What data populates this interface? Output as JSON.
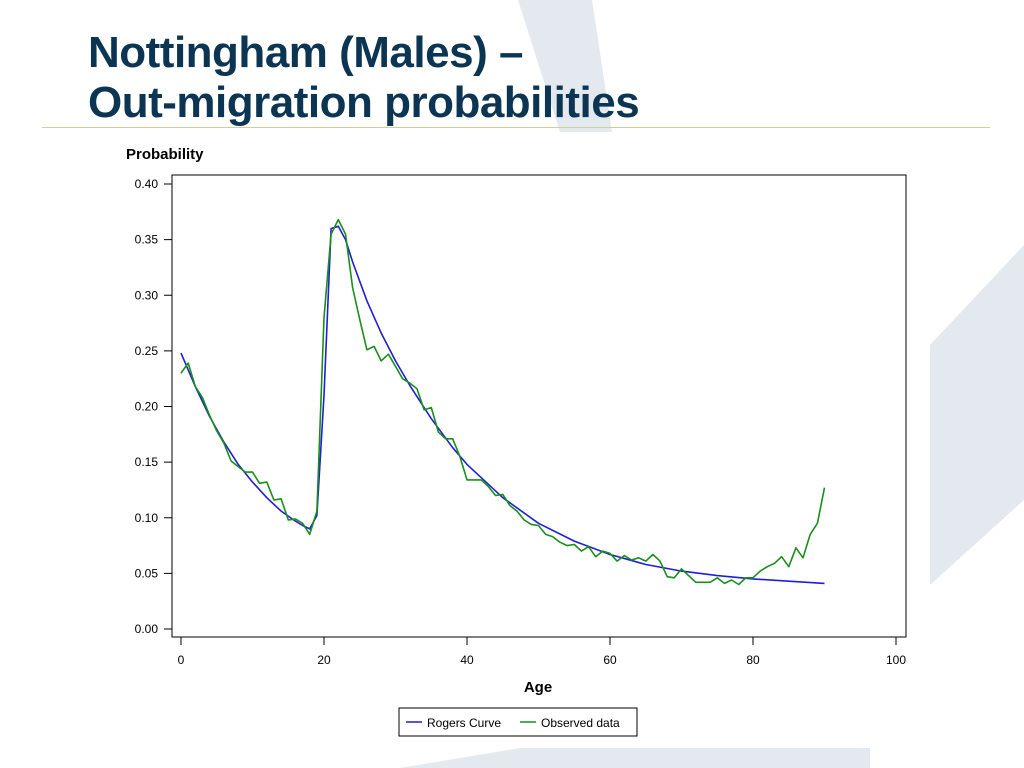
{
  "slide": {
    "title_line1": "Nottingham (Males) –",
    "title_line2": "Out-migration probabilities",
    "colors": {
      "title": "#0b3553",
      "rule": "#c8d29a",
      "decor": "#e4e9ef"
    }
  },
  "chart_data": {
    "type": "line",
    "title": "",
    "xlabel": "Age",
    "ylabel": "Probability",
    "xlim": [
      0,
      100
    ],
    "ylim": [
      0,
      0.4
    ],
    "xticks": [
      "0",
      "20",
      "40",
      "60",
      "80",
      "100"
    ],
    "yticks": [
      "0.00",
      "0.05",
      "0.10",
      "0.15",
      "0.20",
      "0.25",
      "0.30",
      "0.35",
      "0.40"
    ],
    "grid": false,
    "legend_position": "bottom",
    "series": [
      {
        "name": "Rogers Curve",
        "color": "#1f1fd6",
        "x": [
          0,
          2,
          4,
          6,
          8,
          10,
          12,
          14,
          16,
          17,
          18,
          19,
          20,
          21,
          22,
          23,
          24,
          26,
          28,
          30,
          32,
          35,
          38,
          40,
          45,
          50,
          55,
          60,
          65,
          70,
          75,
          80,
          85,
          90
        ],
        "y": [
          0.248,
          0.218,
          0.191,
          0.168,
          0.148,
          0.132,
          0.118,
          0.106,
          0.097,
          0.093,
          0.09,
          0.102,
          0.21,
          0.36,
          0.362,
          0.35,
          0.33,
          0.295,
          0.266,
          0.241,
          0.219,
          0.189,
          0.163,
          0.148,
          0.118,
          0.095,
          0.079,
          0.067,
          0.058,
          0.052,
          0.048,
          0.045,
          0.043,
          0.041
        ]
      },
      {
        "name": "Observed data",
        "color": "#1a8f1a",
        "x": [
          0,
          1,
          2,
          3,
          4,
          5,
          6,
          7,
          8,
          9,
          10,
          11,
          12,
          13,
          14,
          15,
          16,
          17,
          18,
          19,
          20,
          21,
          22,
          23,
          24,
          25,
          26,
          27,
          28,
          29,
          30,
          31,
          32,
          33,
          34,
          35,
          36,
          37,
          38,
          39,
          40,
          41,
          42,
          43,
          44,
          45,
          46,
          47,
          48,
          49,
          50,
          51,
          52,
          53,
          54,
          55,
          56,
          57,
          58,
          59,
          60,
          61,
          62,
          63,
          64,
          65,
          66,
          67,
          68,
          69,
          70,
          71,
          72,
          73,
          74,
          75,
          76,
          77,
          78,
          79,
          80,
          81,
          82,
          83,
          84,
          85,
          86,
          87,
          88,
          89,
          90
        ],
        "y": [
          0.23,
          0.239,
          0.218,
          0.208,
          0.192,
          0.178,
          0.167,
          0.151,
          0.146,
          0.141,
          0.141,
          0.131,
          0.132,
          0.116,
          0.117,
          0.098,
          0.099,
          0.095,
          0.085,
          0.106,
          0.28,
          0.355,
          0.368,
          0.355,
          0.307,
          0.278,
          0.251,
          0.254,
          0.241,
          0.247,
          0.236,
          0.225,
          0.221,
          0.216,
          0.197,
          0.199,
          0.177,
          0.171,
          0.171,
          0.155,
          0.134,
          0.134,
          0.134,
          0.128,
          0.12,
          0.121,
          0.111,
          0.106,
          0.098,
          0.094,
          0.093,
          0.085,
          0.083,
          0.078,
          0.075,
          0.076,
          0.07,
          0.074,
          0.065,
          0.07,
          0.068,
          0.061,
          0.066,
          0.062,
          0.064,
          0.061,
          0.067,
          0.061,
          0.047,
          0.046,
          0.054,
          0.048,
          0.042,
          0.042,
          0.042,
          0.046,
          0.041,
          0.044,
          0.04,
          0.046,
          0.046,
          0.052,
          0.056,
          0.059,
          0.065,
          0.056,
          0.073,
          0.064,
          0.085,
          0.095,
          0.127
        ]
      }
    ]
  }
}
